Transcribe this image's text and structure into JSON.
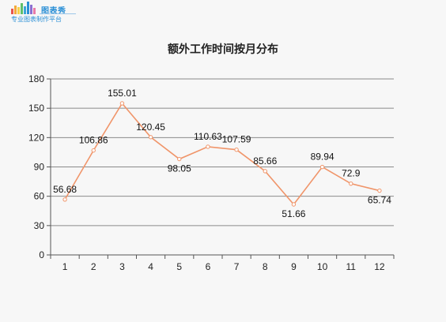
{
  "logo": {
    "name": "图表秀",
    "tagline": "专业图表制作平台",
    "bar_colors": [
      "#e8554e",
      "#f4a93a",
      "#f6d24a",
      "#5fbf6a",
      "#3aa6d6",
      "#2a8fd6",
      "#8a6fd1",
      "#e87aa8"
    ]
  },
  "chart_data": {
    "type": "line",
    "title": "额外工作时间按月分布",
    "xlabel": "",
    "ylabel": "",
    "categories": [
      "1",
      "2",
      "3",
      "4",
      "5",
      "6",
      "7",
      "8",
      "9",
      "10",
      "11",
      "12"
    ],
    "series": [
      {
        "values": [
          56.68,
          106.86,
          155.01,
          120.45,
          98.05,
          110.63,
          107.59,
          85.66,
          51.66,
          89.94,
          72.9,
          65.74
        ],
        "color": "#f0956a"
      }
    ],
    "ylim": [
      0,
      180
    ],
    "yticks": [
      0,
      30,
      60,
      90,
      120,
      150,
      180
    ],
    "grid": true,
    "legend": "none",
    "data_labels": true
  }
}
